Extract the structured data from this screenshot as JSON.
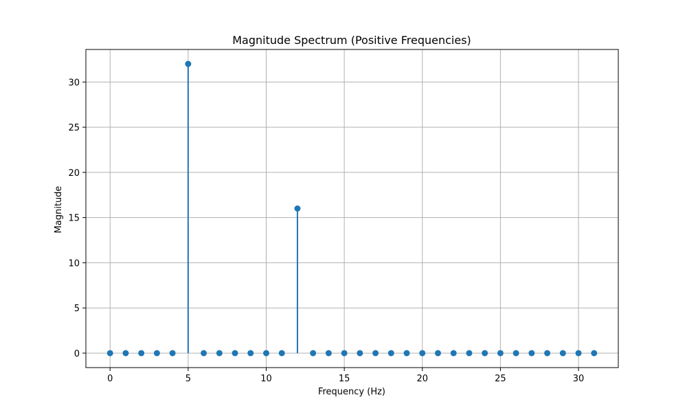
{
  "chart_data": {
    "type": "stem",
    "title": "Magnitude Spectrum (Positive Frequencies)",
    "xlabel": "Frequency (Hz)",
    "ylabel": "Magnitude",
    "xlim": [
      -1.55,
      32.55
    ],
    "ylim": [
      -1.6,
      33.6
    ],
    "x_ticks": [
      0,
      5,
      10,
      15,
      20,
      25,
      30
    ],
    "y_ticks": [
      0,
      5,
      10,
      15,
      20,
      25,
      30
    ],
    "grid": true,
    "series": [
      {
        "x": [
          0,
          1,
          2,
          3,
          4,
          5,
          6,
          7,
          8,
          9,
          10,
          11,
          12,
          13,
          14,
          15,
          16,
          17,
          18,
          19,
          20,
          21,
          22,
          23,
          24,
          25,
          26,
          27,
          28,
          29,
          30,
          31
        ],
        "y": [
          0,
          0,
          0,
          0,
          0,
          32,
          0,
          0,
          0,
          0,
          0,
          0,
          16,
          0,
          0,
          0,
          0,
          0,
          0,
          0,
          0,
          0,
          0,
          0,
          0,
          0,
          0,
          0,
          0,
          0,
          0,
          0
        ]
      }
    ],
    "colors": {
      "series": "#1f77b4",
      "grid": "#b0b0b0",
      "axes": "#000000"
    }
  }
}
